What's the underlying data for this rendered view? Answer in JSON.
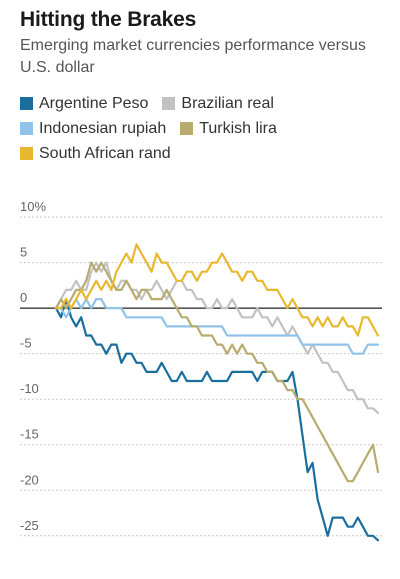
{
  "chart_data": {
    "type": "line",
    "title": "Hitting the Brakes",
    "subtitle": "Emerging market currencies performance versus U.S. dollar",
    "ylabel": "",
    "xlabel": "",
    "ylim": [
      -27,
      11
    ],
    "yticks": [
      {
        "value": 10,
        "label": "10%"
      },
      {
        "value": 5,
        "label": "5"
      },
      {
        "value": 0,
        "label": "0"
      },
      {
        "value": -5,
        "label": "-5"
      },
      {
        "value": -10,
        "label": "-10"
      },
      {
        "value": -15,
        "label": "-15"
      },
      {
        "value": -20,
        "label": "-20"
      },
      {
        "value": -25,
        "label": "-25"
      }
    ],
    "x_points": 65,
    "grid": "dotted horizontal",
    "legend_position": "top",
    "series": [
      {
        "name": "Argentine Peso",
        "color": "#1a6e9e",
        "values": [
          0,
          -1,
          1,
          -1,
          -2,
          -1,
          -3,
          -3,
          -4,
          -4,
          -5,
          -4,
          -4,
          -6,
          -5,
          -5,
          -6,
          -6,
          -7,
          -7,
          -7,
          -6,
          -7,
          -8,
          -8,
          -7,
          -8,
          -8,
          -8,
          -8,
          -7,
          -8,
          -8,
          -8,
          -8,
          -7,
          -7,
          -7,
          -7,
          -7,
          -8,
          -7,
          -7,
          -7,
          -8,
          -8,
          -8,
          -7,
          -10,
          -14,
          -18,
          -17,
          -21,
          -23,
          -25,
          -23,
          -23,
          -23,
          -24,
          -24,
          -23,
          -24,
          -25,
          -25,
          -25.5
        ]
      },
      {
        "name": "Brazilian real",
        "color": "#c2c2c2",
        "values": [
          0,
          1,
          2,
          2,
          3,
          2,
          2,
          4,
          5,
          4,
          5,
          3,
          2,
          3,
          3,
          2,
          2,
          1,
          2,
          2,
          3,
          2,
          1,
          2,
          3,
          3,
          2,
          2,
          1,
          1,
          0,
          0,
          1,
          0,
          0,
          1,
          0,
          -1,
          -1,
          -1,
          0,
          -1,
          -1,
          -2,
          -1,
          -2,
          -3,
          -2,
          -3,
          -4,
          -5,
          -4,
          -5,
          -6,
          -6,
          -7,
          -7,
          -8,
          -9,
          -9,
          -10,
          -10,
          -11,
          -11,
          -11.5
        ]
      },
      {
        "name": "Indonesian rupiah",
        "color": "#8fc3ea",
        "values": [
          0,
          0,
          -1,
          0,
          1,
          0,
          1,
          0,
          1,
          1,
          0,
          0,
          0,
          0,
          -1,
          -1,
          -1,
          -1,
          -1,
          -1,
          -1,
          -1,
          -2,
          -2,
          -2,
          -2,
          -2,
          -2,
          -2,
          -2,
          -2,
          -2,
          -2,
          -2,
          -3,
          -3,
          -3,
          -3,
          -3,
          -3,
          -3,
          -3,
          -3,
          -3,
          -3,
          -3,
          -3,
          -3,
          -3,
          -4,
          -4,
          -4,
          -4,
          -4,
          -4,
          -4,
          -4,
          -4,
          -4,
          -5,
          -5,
          -5,
          -4,
          -4,
          -4
        ]
      },
      {
        "name": "Turkish lira",
        "color": "#b8ab6f",
        "values": [
          0,
          1,
          0,
          1,
          2,
          2,
          3,
          5,
          4,
          5,
          4,
          3,
          2,
          2,
          3,
          2,
          1,
          2,
          2,
          1,
          1,
          1,
          2,
          1,
          0,
          -1,
          -1,
          -2,
          -2,
          -3,
          -3,
          -3,
          -4,
          -4,
          -5,
          -4,
          -5,
          -4,
          -5,
          -5,
          -6,
          -6,
          -7,
          -7,
          -8,
          -8,
          -9,
          -9,
          -10,
          -10,
          -11,
          -12,
          -13,
          -14,
          -15,
          -16,
          -17,
          -18,
          -19,
          -19,
          -18,
          -17,
          -16,
          -15,
          -18
        ]
      },
      {
        "name": "South African rand",
        "color": "#e8b830",
        "values": [
          0,
          0,
          1,
          0,
          1,
          2,
          1,
          2,
          3,
          2,
          3,
          2,
          4,
          5,
          6,
          5,
          7,
          6,
          5,
          4,
          6,
          5,
          5,
          4,
          3,
          3,
          4,
          4,
          3,
          4,
          4,
          5,
          5,
          6,
          5,
          4,
          4,
          3,
          4,
          4,
          3,
          3,
          2,
          2,
          2,
          1,
          0,
          1,
          0,
          -1,
          -1,
          -2,
          -1,
          -2,
          -1,
          -2,
          -2,
          -1,
          -2,
          -2,
          -3,
          -1,
          -1,
          -2,
          -3
        ]
      }
    ],
    "legend_rows": [
      [
        "Argentine Peso",
        "Brazilian real"
      ],
      [
        "Indonesian rupiah",
        "Turkish lira"
      ],
      [
        "South African rand"
      ]
    ]
  }
}
